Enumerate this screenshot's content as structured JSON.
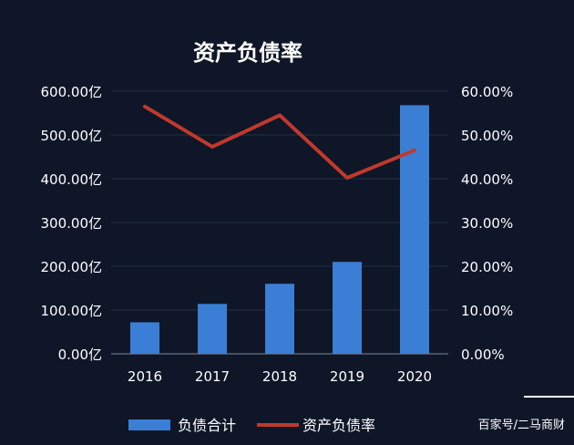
{
  "chart_data": {
    "type": "bar",
    "title": "资产负债率",
    "categories": [
      "2016",
      "2017",
      "2018",
      "2019",
      "2020"
    ],
    "series": [
      {
        "name": "负债合计",
        "type": "bar",
        "axis": "left",
        "color": "#3a7fd5",
        "values": [
          72,
          114,
          160,
          210,
          568
        ]
      },
      {
        "name": "资产负债率",
        "type": "line",
        "axis": "right",
        "color": "#c0392b",
        "values": [
          56.5,
          47.3,
          54.5,
          40.2,
          46.5
        ]
      }
    ],
    "y_left": {
      "range": [
        0,
        600
      ],
      "ticks": [
        "0.00亿",
        "100.00亿",
        "200.00亿",
        "300.00亿",
        "400.00亿",
        "500.00亿",
        "600.00亿"
      ]
    },
    "y_right": {
      "range": [
        0,
        60
      ],
      "ticks": [
        "0.00%",
        "10.00%",
        "20.00%",
        "30.00%",
        "40.00%",
        "50.00%",
        "60.00%"
      ]
    },
    "grid": true,
    "legend_position": "bottom"
  },
  "watermark": "百家号/二马商财"
}
